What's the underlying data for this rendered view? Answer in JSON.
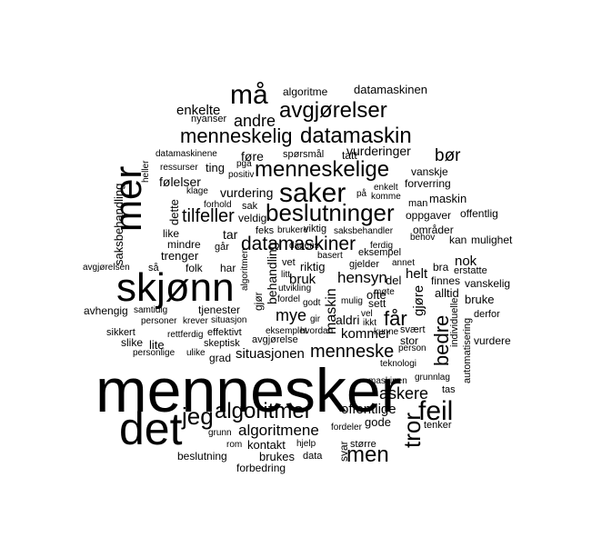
{
  "words": [
    {
      "text": "mennesker"
    },
    {
      "text": "det"
    },
    {
      "text": "skjønn"
    },
    {
      "text": "mer"
    },
    {
      "text": "saker"
    },
    {
      "text": "beslutninger"
    },
    {
      "text": "må"
    },
    {
      "text": "avgjørelser"
    },
    {
      "text": "datamaskin"
    },
    {
      "text": "menneskelig"
    },
    {
      "text": "menneskelige"
    },
    {
      "text": "datamaskiner"
    },
    {
      "text": "algoritmer"
    },
    {
      "text": "jeg"
    },
    {
      "text": "tror"
    },
    {
      "text": "feil"
    },
    {
      "text": "bedre"
    },
    {
      "text": "men"
    },
    {
      "text": "askere"
    },
    {
      "text": "menneske"
    },
    {
      "text": "får"
    },
    {
      "text": "tilfeller"
    },
    {
      "text": "bør"
    },
    {
      "text": "andre"
    },
    {
      "text": "enkelte"
    },
    {
      "text": "nyanser"
    },
    {
      "text": "algoritme"
    },
    {
      "text": "datamaskinen"
    },
    {
      "text": "algoritmene"
    },
    {
      "text": "offentlige"
    },
    {
      "text": "situasjonen"
    },
    {
      "text": "hensyn"
    },
    {
      "text": "bruk"
    },
    {
      "text": "mye"
    },
    {
      "text": "maskin"
    },
    {
      "text": "nok"
    },
    {
      "text": "helt"
    },
    {
      "text": "gjøre"
    },
    {
      "text": "kommer"
    },
    {
      "text": "aldri"
    },
    {
      "text": "vurderinger"
    },
    {
      "text": "vurdering"
    },
    {
      "text": "saksbehandling"
    },
    {
      "text": "behandling"
    },
    {
      "text": "alltid"
    },
    {
      "text": "bruke"
    },
    {
      "text": "kontakt"
    },
    {
      "text": "brukes"
    },
    {
      "text": "beslutning"
    },
    {
      "text": "forbedring"
    },
    {
      "text": "data"
    },
    {
      "text": "hjelp"
    },
    {
      "text": "større"
    },
    {
      "text": "svar"
    },
    {
      "text": "gode"
    },
    {
      "text": "tenker"
    },
    {
      "text": "tas"
    },
    {
      "text": "grunnlag"
    },
    {
      "text": "automatisering"
    },
    {
      "text": "individuelle"
    },
    {
      "text": "vurdere"
    },
    {
      "text": "derfor"
    },
    {
      "text": "vanskelig"
    },
    {
      "text": "finnes"
    },
    {
      "text": "erstatte"
    },
    {
      "text": "bra"
    },
    {
      "text": "mulighet"
    },
    {
      "text": "kan"
    },
    {
      "text": "områder"
    },
    {
      "text": "offentlig"
    },
    {
      "text": "oppgaver"
    },
    {
      "text": "maskin"
    },
    {
      "text": "man"
    },
    {
      "text": "forverring"
    },
    {
      "text": "vanskje"
    },
    {
      "text": "føre"
    },
    {
      "text": "ting"
    },
    {
      "text": "følelser"
    },
    {
      "text": "ressurser"
    },
    {
      "text": "heller"
    },
    {
      "text": "datamaskinene"
    },
    {
      "text": "spørsmål"
    },
    {
      "text": "tatt"
    },
    {
      "text": "pga"
    },
    {
      "text": "positiv"
    },
    {
      "text": "klage"
    },
    {
      "text": "forhold"
    },
    {
      "text": "sak"
    },
    {
      "text": "veldig"
    },
    {
      "text": "dette"
    },
    {
      "text": "like"
    },
    {
      "text": "mindre"
    },
    {
      "text": "trenger"
    },
    {
      "text": "folk"
    },
    {
      "text": "har"
    },
    {
      "text": "tar"
    },
    {
      "text": "går"
    },
    {
      "text": "gjør"
    },
    {
      "text": "avgjørelsen"
    },
    {
      "text": "så"
    },
    {
      "text": "avhengig"
    },
    {
      "text": "samtidig"
    },
    {
      "text": "personer"
    },
    {
      "text": "krever"
    },
    {
      "text": "tjenester"
    },
    {
      "text": "situasjon"
    },
    {
      "text": "sikkert"
    },
    {
      "text": "slike"
    },
    {
      "text": "lite"
    },
    {
      "text": "rettferdig"
    },
    {
      "text": "effektivt"
    },
    {
      "text": "personlige"
    },
    {
      "text": "ulike"
    },
    {
      "text": "skeptisk"
    },
    {
      "text": "grad"
    },
    {
      "text": "avgjørelse"
    },
    {
      "text": "grunn"
    },
    {
      "text": "rom"
    },
    {
      "text": "fordeler"
    },
    {
      "text": "teknologi"
    },
    {
      "text": "maskinen"
    },
    {
      "text": "person"
    },
    {
      "text": "stor"
    },
    {
      "text": "svært"
    },
    {
      "text": "ofte"
    },
    {
      "text": "sett"
    },
    {
      "text": "del"
    },
    {
      "text": "vel"
    },
    {
      "text": "mulig"
    },
    {
      "text": "ikkt"
    },
    {
      "text": "gir"
    },
    {
      "text": "godt"
    },
    {
      "text": "fordel"
    },
    {
      "text": "utvikling"
    },
    {
      "text": "vet"
    },
    {
      "text": "riktig"
    },
    {
      "text": "gjelder"
    },
    {
      "text": "annet"
    },
    {
      "text": "basert"
    },
    {
      "text": "eksempel"
    },
    {
      "text": "behov"
    },
    {
      "text": "saksbehandler"
    },
    {
      "text": "brukere"
    },
    {
      "text": "viktig"
    },
    {
      "text": "feks"
    },
    {
      "text": "enkelt"
    },
    {
      "text": "komme"
    },
    {
      "text": "på"
    },
    {
      "text": "ferdig"
    },
    {
      "text": "algoritmen"
    },
    {
      "text": "litt"
    },
    {
      "text": "møte"
    },
    {
      "text": "dagens"
    },
    {
      "text": "eksemplet"
    },
    {
      "text": "hvordan"
    },
    {
      "text": "kunne"
    }
  ]
}
